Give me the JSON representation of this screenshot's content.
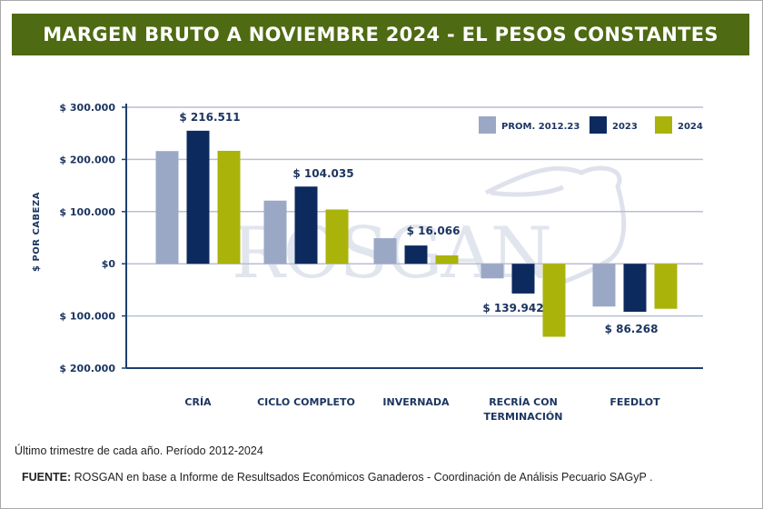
{
  "header": {
    "title": "MARGEN BRUTO A NOVIEMBRE 2024 - EL PESOS CONSTANTES"
  },
  "chart_data": {
    "type": "bar",
    "title": "MARGEN BRUTO A NOVIEMBRE 2024 - EL PESOS CONSTANTES",
    "xlabel": "",
    "ylabel": "$ POR CABEZA",
    "ylim": [
      -200000,
      300000
    ],
    "yticks": [
      300000,
      200000,
      100000,
      0,
      -100000,
      -200000
    ],
    "ytick_labels": [
      "$ 300.000",
      "$ 200.000",
      "$ 100.000",
      "$0",
      "$ 100.000",
      "$ 200.000"
    ],
    "grid": true,
    "legend_position": "top-right",
    "categories": [
      "CRÍA",
      "CICLO COMPLETO",
      "INVERNADA",
      "RECRÍA CON TERMINACIÓN",
      "FEEDLOT"
    ],
    "category_lines": [
      [
        "CRÍA"
      ],
      [
        "CICLO COMPLETO"
      ],
      [
        "INVERNADA"
      ],
      [
        "RECRÍA CON",
        "TERMINACIÓN"
      ],
      [
        "FEEDLOT"
      ]
    ],
    "series": [
      {
        "name": "PROM. 2012.23",
        "color": "#9aa8c6",
        "values": [
          216000,
          121000,
          49000,
          -28000,
          -82000
        ]
      },
      {
        "name": "2023",
        "color": "#0d2a5e",
        "values": [
          255000,
          148000,
          35000,
          -57000,
          -92000
        ]
      },
      {
        "name": "2024",
        "color": "#aab30a",
        "values": [
          216511,
          104035,
          16066,
          -139942,
          -86268
        ]
      }
    ],
    "annotations": [
      {
        "category": "CRÍA",
        "text": "$ 216.511",
        "position": "above"
      },
      {
        "category": "CICLO COMPLETO",
        "text": "$ 104.035",
        "position": "above"
      },
      {
        "category": "INVERNADA",
        "text": "$ 16.066",
        "position": "above"
      },
      {
        "category": "RECRÍA CON TERMINACIÓN",
        "text": "$ 139.942",
        "position": "below"
      },
      {
        "category": "FEEDLOT",
        "text": "$ 86.268",
        "position": "below"
      }
    ],
    "watermark": "ROSGAN"
  },
  "footer": {
    "note": "Último trimestre de cada año. Período 2012-2024",
    "source_label": "FUENTE:",
    "source_text": " ROSGAN en base a Informe de Resultsados Económicos Ganaderos - Coordinación de Análisis Pecuario SAGyP ."
  },
  "colors": {
    "title_bg": "#4e6a12",
    "axis": "#1c3f6e",
    "grid": "#b9bfd3",
    "text_dark": "#1c3560"
  }
}
